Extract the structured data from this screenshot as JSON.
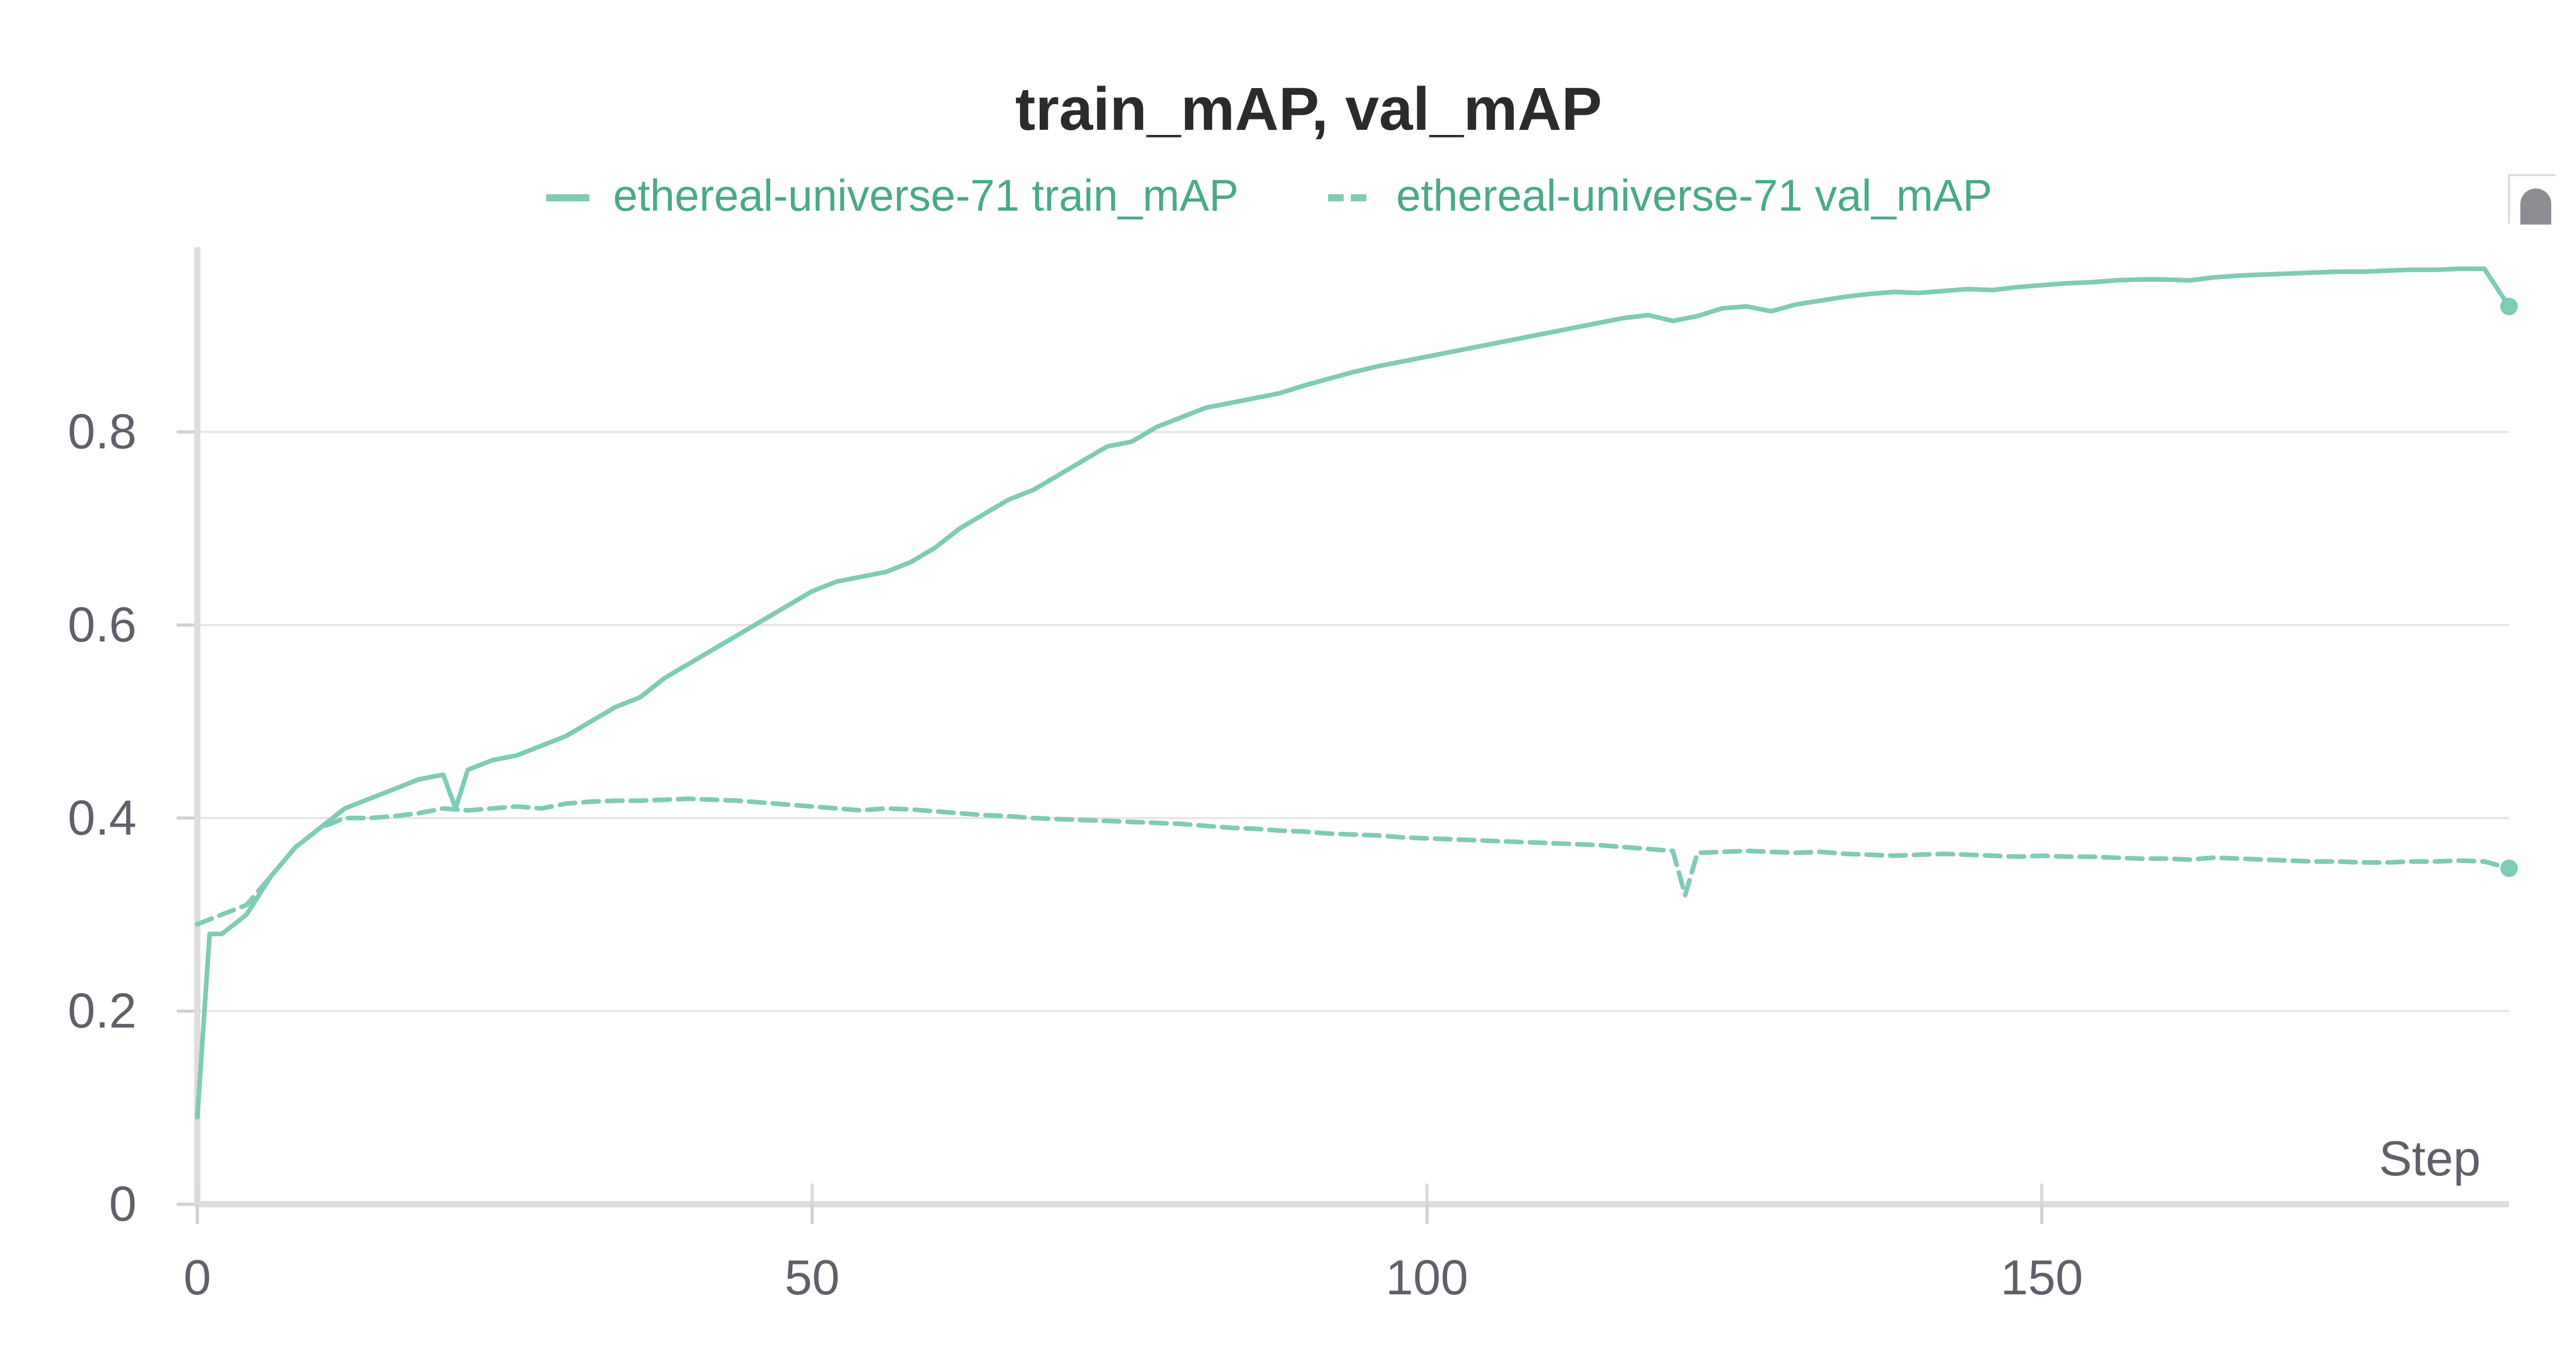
{
  "chart_data": {
    "type": "line",
    "title": "train_mAP, val_mAP",
    "xlabel": "Step",
    "ylabel": "",
    "xlim": [
      0,
      188
    ],
    "ylim": [
      0,
      0.97
    ],
    "x_ticks": [
      0,
      50,
      100,
      150
    ],
    "y_ticks": [
      0,
      0.2,
      0.4,
      0.6,
      0.8
    ],
    "y_tick_labels": [
      "0",
      "0.2",
      "0.4",
      "0.6",
      "0.8"
    ],
    "grid": true,
    "legend_position": "top-center",
    "series": [
      {
        "name": "ethereal-universe-71 train_mAP",
        "style": "solid",
        "color": "#80cbb5",
        "x": [
          0,
          1,
          2,
          3,
          4,
          5,
          6,
          8,
          10,
          12,
          14,
          16,
          18,
          20,
          21,
          22,
          24,
          26,
          28,
          30,
          32,
          34,
          36,
          38,
          40,
          42,
          44,
          46,
          48,
          50,
          52,
          54,
          56,
          58,
          60,
          62,
          64,
          66,
          68,
          70,
          72,
          74,
          76,
          78,
          80,
          82,
          84,
          86,
          88,
          90,
          92,
          94,
          96,
          98,
          100,
          102,
          104,
          106,
          108,
          110,
          112,
          114,
          116,
          118,
          120,
          122,
          124,
          126,
          128,
          130,
          132,
          134,
          136,
          138,
          140,
          142,
          144,
          146,
          148,
          150,
          152,
          154,
          156,
          158,
          160,
          162,
          164,
          166,
          168,
          170,
          172,
          174,
          176,
          178,
          180,
          182,
          184,
          186,
          188
        ],
        "values": [
          0.09,
          0.28,
          0.28,
          0.29,
          0.3,
          0.32,
          0.34,
          0.37,
          0.39,
          0.41,
          0.42,
          0.43,
          0.44,
          0.445,
          0.41,
          0.45,
          0.46,
          0.465,
          0.475,
          0.485,
          0.5,
          0.515,
          0.525,
          0.545,
          0.56,
          0.575,
          0.59,
          0.605,
          0.62,
          0.635,
          0.645,
          0.65,
          0.655,
          0.665,
          0.68,
          0.7,
          0.715,
          0.73,
          0.74,
          0.755,
          0.77,
          0.785,
          0.79,
          0.805,
          0.815,
          0.825,
          0.83,
          0.835,
          0.84,
          0.848,
          0.855,
          0.862,
          0.868,
          0.873,
          0.878,
          0.883,
          0.888,
          0.893,
          0.898,
          0.903,
          0.908,
          0.913,
          0.918,
          0.921,
          0.915,
          0.92,
          0.928,
          0.93,
          0.925,
          0.932,
          0.936,
          0.94,
          0.943,
          0.945,
          0.944,
          0.946,
          0.948,
          0.947,
          0.95,
          0.952,
          0.954,
          0.955,
          0.957,
          0.958,
          0.958,
          0.957,
          0.96,
          0.962,
          0.963,
          0.964,
          0.965,
          0.966,
          0.966,
          0.967,
          0.968,
          0.968,
          0.969,
          0.969,
          0.93
        ]
      },
      {
        "name": "ethereal-universe-71 val_mAP",
        "style": "dashed",
        "color": "#80cbb5",
        "x": [
          0,
          2,
          4,
          6,
          8,
          10,
          12,
          14,
          16,
          18,
          20,
          22,
          24,
          26,
          28,
          30,
          32,
          34,
          36,
          38,
          40,
          42,
          44,
          46,
          48,
          50,
          52,
          54,
          56,
          58,
          60,
          62,
          64,
          66,
          68,
          70,
          72,
          74,
          76,
          78,
          80,
          82,
          84,
          86,
          88,
          90,
          92,
          94,
          96,
          98,
          100,
          102,
          104,
          106,
          108,
          110,
          112,
          114,
          116,
          118,
          120,
          121,
          122,
          124,
          126,
          128,
          130,
          132,
          134,
          136,
          138,
          140,
          142,
          144,
          146,
          148,
          150,
          152,
          154,
          156,
          158,
          160,
          162,
          164,
          166,
          168,
          170,
          172,
          174,
          176,
          178,
          180,
          182,
          184,
          186,
          188
        ],
        "values": [
          0.29,
          0.3,
          0.31,
          0.34,
          0.37,
          0.39,
          0.4,
          0.4,
          0.402,
          0.405,
          0.41,
          0.408,
          0.41,
          0.412,
          0.41,
          0.415,
          0.417,
          0.418,
          0.418,
          0.419,
          0.42,
          0.419,
          0.418,
          0.416,
          0.414,
          0.412,
          0.41,
          0.408,
          0.41,
          0.409,
          0.407,
          0.405,
          0.403,
          0.402,
          0.4,
          0.399,
          0.398,
          0.397,
          0.396,
          0.395,
          0.394,
          0.392,
          0.39,
          0.389,
          0.387,
          0.386,
          0.384,
          0.383,
          0.382,
          0.38,
          0.379,
          0.378,
          0.377,
          0.376,
          0.375,
          0.374,
          0.373,
          0.372,
          0.37,
          0.368,
          0.366,
          0.32,
          0.364,
          0.365,
          0.366,
          0.365,
          0.364,
          0.365,
          0.363,
          0.362,
          0.361,
          0.362,
          0.363,
          0.362,
          0.361,
          0.36,
          0.361,
          0.36,
          0.36,
          0.359,
          0.358,
          0.358,
          0.357,
          0.359,
          0.358,
          0.357,
          0.356,
          0.355,
          0.355,
          0.354,
          0.354,
          0.355,
          0.355,
          0.356,
          0.355,
          0.348
        ]
      }
    ]
  }
}
